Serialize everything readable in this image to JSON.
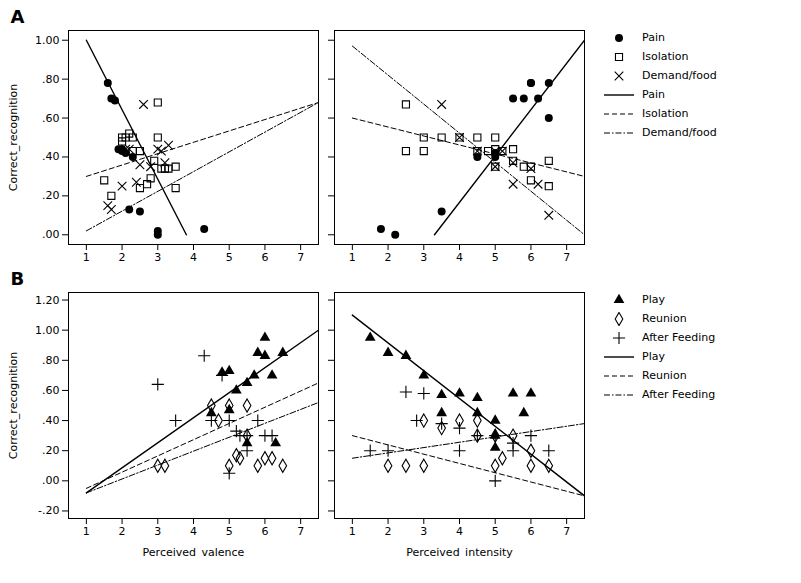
{
  "chart_data": [
    {
      "type": "scatter",
      "title": "A",
      "ylabel": "Correct_recognition",
      "xlim": [
        0.5,
        7.5
      ],
      "xticks": [
        1,
        2,
        3,
        4,
        5,
        6,
        7
      ],
      "ylim": [
        -0.05,
        1.05
      ],
      "yticks": [
        {
          "value": 0.0,
          "label": ".00"
        },
        {
          "value": 0.2,
          "label": ".20"
        },
        {
          "value": 0.4,
          "label": ".40"
        },
        {
          "value": 0.6,
          "label": ".60"
        },
        {
          "value": 0.8,
          "label": ".80"
        },
        {
          "value": 1.0,
          "label": "1.00"
        }
      ],
      "series": [
        {
          "name": "Pain",
          "type": "scatter",
          "marker": "circle",
          "color": "#000000",
          "x": [
            1.6,
            1.7,
            1.8,
            1.9,
            2.0,
            2.0,
            2.1,
            2.2,
            2.3,
            2.5,
            3.0,
            3.0,
            4.3
          ],
          "values": [
            0.78,
            0.7,
            0.69,
            0.44,
            0.44,
            0.43,
            0.42,
            0.13,
            0.4,
            0.12,
            0.0,
            0.02,
            0.03
          ]
        },
        {
          "name": "Isolation",
          "type": "scatter",
          "marker": "square",
          "color": "#000000",
          "x": [
            1.5,
            1.7,
            2.0,
            2.0,
            2.1,
            2.2,
            2.3,
            2.3,
            2.5,
            2.5,
            2.7,
            2.9,
            3.0,
            3.0,
            3.1,
            3.2,
            3.3,
            3.5,
            3.5,
            2.8
          ],
          "values": [
            0.28,
            0.2,
            0.5,
            0.48,
            0.5,
            0.52,
            0.5,
            0.43,
            0.43,
            0.24,
            0.26,
            0.38,
            0.68,
            0.5,
            0.34,
            0.34,
            0.34,
            0.35,
            0.24,
            0.29
          ]
        },
        {
          "name": "Demand/food",
          "type": "scatter",
          "marker": "x",
          "color": "#000000",
          "x": [
            1.6,
            1.7,
            2.0,
            2.1,
            2.2,
            2.4,
            2.5,
            2.6,
            2.8,
            3.0,
            3.1,
            3.2,
            3.3
          ],
          "values": [
            0.15,
            0.13,
            0.25,
            0.44,
            0.44,
            0.27,
            0.36,
            0.67,
            0.35,
            0.44,
            0.43,
            0.37,
            0.46
          ]
        },
        {
          "name": "Pain",
          "type": "line",
          "line_style": "solid",
          "color": "#000000",
          "x": [
            1.0,
            3.8
          ],
          "values": [
            1.0,
            0.0
          ]
        },
        {
          "name": "Isolation",
          "type": "line",
          "line_style": "dashed",
          "color": "#000000",
          "x": [
            1.0,
            7.5
          ],
          "values": [
            0.3,
            0.68
          ]
        },
        {
          "name": "Demand/food",
          "type": "line",
          "line_style": "dashdot",
          "color": "#000000",
          "x": [
            1.0,
            7.5
          ],
          "values": [
            0.02,
            0.68
          ]
        }
      ]
    },
    {
      "type": "scatter",
      "tick_labels": "x",
      "legend": "right",
      "xlim": [
        0.5,
        7.5
      ],
      "xticks": [
        1,
        2,
        3,
        4,
        5,
        6,
        7
      ],
      "ylim": [
        -0.05,
        1.05
      ],
      "yticks": [
        {
          "value": 0.0,
          "label": ".00"
        },
        {
          "value": 0.2,
          "label": ".20"
        },
        {
          "value": 0.4,
          "label": ".40"
        },
        {
          "value": 0.6,
          "label": ".60"
        },
        {
          "value": 0.8,
          "label": ".80"
        },
        {
          "value": 1.0,
          "label": "1.00"
        }
      ],
      "series": [
        {
          "name": "Pain",
          "type": "scatter",
          "marker": "circle",
          "color": "#000000",
          "x": [
            1.8,
            2.2,
            3.5,
            4.5,
            5.0,
            5.0,
            5.5,
            5.8,
            6.0,
            6.0,
            6.2,
            6.5,
            6.5
          ],
          "values": [
            0.03,
            0.0,
            0.12,
            0.4,
            0.4,
            0.42,
            0.7,
            0.7,
            0.78,
            0.78,
            0.7,
            0.6,
            0.78
          ]
        },
        {
          "name": "Isolation",
          "type": "scatter",
          "marker": "square",
          "color": "#000000",
          "x": [
            2.5,
            3.0,
            3.5,
            4.0,
            4.5,
            4.5,
            4.8,
            5.0,
            5.0,
            5.0,
            5.2,
            5.5,
            5.5,
            5.8,
            6.0,
            6.0,
            6.5,
            6.5,
            2.5,
            3.0
          ],
          "values": [
            0.43,
            0.43,
            0.5,
            0.5,
            0.5,
            0.43,
            0.43,
            0.5,
            0.44,
            0.35,
            0.43,
            0.44,
            0.38,
            0.35,
            0.35,
            0.28,
            0.38,
            0.25,
            0.67,
            0.5
          ]
        },
        {
          "name": "Demand/food",
          "type": "scatter",
          "marker": "x",
          "color": "#000000",
          "x": [
            3.5,
            4.0,
            4.5,
            5.0,
            5.0,
            5.2,
            5.5,
            5.5,
            6.0,
            6.2,
            6.5
          ],
          "values": [
            0.67,
            0.5,
            0.43,
            0.43,
            0.35,
            0.43,
            0.37,
            0.26,
            0.34,
            0.26,
            0.1
          ]
        },
        {
          "name": "Pain",
          "type": "line",
          "line_style": "solid",
          "color": "#000000",
          "x": [
            3.3,
            7.5
          ],
          "values": [
            0.0,
            1.0
          ]
        },
        {
          "name": "Isolation",
          "type": "line",
          "line_style": "dashed",
          "color": "#000000",
          "x": [
            1.0,
            7.5
          ],
          "values": [
            0.6,
            0.3
          ]
        },
        {
          "name": "Demand/food",
          "type": "line",
          "line_style": "dashdot",
          "color": "#000000",
          "x": [
            1.0,
            7.5
          ],
          "values": [
            0.97,
            0.0
          ]
        }
      ]
    },
    {
      "type": "scatter",
      "title": "B",
      "ylabel": "Correct_recognition",
      "xlabel": "Perceived_valence",
      "xlim": [
        0.5,
        7.5
      ],
      "xticks": [
        1,
        2,
        3,
        4,
        5,
        6,
        7
      ],
      "ylim": [
        -0.25,
        1.25
      ],
      "yticks": [
        {
          "value": -0.2,
          "label": "-.20"
        },
        {
          "value": 0.0,
          "label": ".00"
        },
        {
          "value": 0.2,
          "label": ".20"
        },
        {
          "value": 0.4,
          "label": ".40"
        },
        {
          "value": 0.6,
          "label": ".60"
        },
        {
          "value": 0.8,
          "label": ".80"
        },
        {
          "value": 1.0,
          "label": "1.00"
        },
        {
          "value": 1.2,
          "label": "1.20"
        }
      ],
      "series": [
        {
          "name": "Play",
          "type": "scatter",
          "marker": "triangle",
          "color": "#000000",
          "x": [
            4.5,
            4.8,
            5.0,
            5.0,
            5.2,
            5.5,
            5.5,
            5.7,
            5.8,
            6.0,
            6.0,
            6.2,
            6.3,
            6.5
          ],
          "values": [
            0.45,
            0.72,
            0.73,
            0.47,
            0.6,
            0.65,
            0.25,
            0.7,
            0.85,
            0.95,
            0.83,
            0.7,
            0.25,
            0.85
          ]
        },
        {
          "name": "Reunion",
          "type": "scatter",
          "marker": "diamond",
          "color": "#000000",
          "x": [
            3.0,
            3.2,
            4.5,
            4.7,
            5.0,
            5.0,
            5.2,
            5.3,
            5.5,
            5.5,
            5.8,
            6.0,
            6.2,
            6.5
          ],
          "values": [
            0.1,
            0.1,
            0.5,
            0.4,
            0.5,
            0.1,
            0.17,
            0.15,
            0.5,
            0.3,
            0.1,
            0.15,
            0.15,
            0.1
          ]
        },
        {
          "name": "After Feeding",
          "type": "scatter",
          "marker": "plus",
          "color": "#000000",
          "x": [
            3.0,
            3.5,
            4.3,
            4.5,
            4.8,
            5.0,
            5.0,
            5.2,
            5.3,
            5.5,
            5.5,
            5.8,
            6.0,
            6.2
          ],
          "values": [
            0.64,
            0.4,
            0.83,
            0.4,
            0.7,
            0.4,
            0.05,
            0.33,
            0.3,
            0.3,
            0.2,
            0.4,
            0.3,
            0.3
          ]
        },
        {
          "name": "Play",
          "type": "line",
          "line_style": "solid",
          "color": "#000000",
          "x": [
            1.0,
            7.5
          ],
          "values": [
            -0.08,
            1.0
          ]
        },
        {
          "name": "Reunion",
          "type": "line",
          "line_style": "dashed",
          "color": "#000000",
          "x": [
            1.0,
            7.5
          ],
          "values": [
            -0.05,
            0.65
          ]
        },
        {
          "name": "After Feeding",
          "type": "line",
          "line_style": "dashdot",
          "color": "#000000",
          "x": [
            1.0,
            7.5
          ],
          "values": [
            -0.08,
            0.52
          ]
        }
      ]
    },
    {
      "type": "scatter",
      "xlabel": "Perceived_intensity",
      "tick_labels": "x",
      "legend": "right",
      "xlim": [
        0.5,
        7.5
      ],
      "xticks": [
        1,
        2,
        3,
        4,
        5,
        6,
        7
      ],
      "ylim": [
        -0.25,
        1.25
      ],
      "yticks": [
        {
          "value": -0.2,
          "label": "-.20"
        },
        {
          "value": 0.0,
          "label": ".00"
        },
        {
          "value": 0.2,
          "label": ".20"
        },
        {
          "value": 0.4,
          "label": ".40"
        },
        {
          "value": 0.6,
          "label": ".60"
        },
        {
          "value": 0.8,
          "label": ".80"
        },
        {
          "value": 1.0,
          "label": "1.00"
        },
        {
          "value": 1.2,
          "label": "1.20"
        }
      ],
      "series": [
        {
          "name": "Play",
          "type": "scatter",
          "marker": "triangle",
          "color": "#000000",
          "x": [
            1.5,
            2.0,
            2.5,
            3.0,
            3.5,
            3.5,
            4.0,
            4.5,
            4.5,
            5.0,
            5.0,
            5.0,
            5.5,
            5.8,
            6.0
          ],
          "values": [
            0.95,
            0.85,
            0.83,
            0.7,
            0.57,
            0.45,
            0.58,
            0.55,
            0.45,
            0.4,
            0.3,
            0.22,
            0.58,
            0.45,
            0.58
          ]
        },
        {
          "name": "Reunion",
          "type": "scatter",
          "marker": "diamond",
          "color": "#000000",
          "x": [
            2.0,
            2.5,
            3.0,
            3.0,
            3.5,
            4.0,
            4.5,
            4.5,
            5.0,
            5.0,
            5.2,
            5.5,
            6.0,
            6.0,
            6.5
          ],
          "values": [
            0.1,
            0.1,
            0.4,
            0.1,
            0.35,
            0.4,
            0.4,
            0.3,
            0.3,
            0.1,
            0.15,
            0.3,
            0.2,
            0.1,
            0.1
          ]
        },
        {
          "name": "After Feeding",
          "type": "scatter",
          "marker": "plus",
          "color": "#000000",
          "x": [
            1.5,
            2.0,
            2.5,
            2.8,
            3.0,
            3.5,
            4.0,
            4.0,
            4.5,
            5.0,
            5.0,
            5.5,
            5.5,
            6.0,
            6.5
          ],
          "values": [
            0.2,
            0.2,
            0.59,
            0.4,
            0.58,
            0.38,
            0.35,
            0.2,
            0.3,
            0.3,
            0.0,
            0.25,
            0.2,
            0.3,
            0.2
          ]
        },
        {
          "name": "Play",
          "type": "line",
          "line_style": "solid",
          "color": "#000000",
          "x": [
            1.0,
            7.5
          ],
          "values": [
            1.1,
            -0.1
          ]
        },
        {
          "name": "Reunion",
          "type": "line",
          "line_style": "dashed",
          "color": "#000000",
          "x": [
            1.0,
            7.5
          ],
          "values": [
            0.3,
            -0.1
          ]
        },
        {
          "name": "After Feeding",
          "type": "line",
          "line_style": "dashdot",
          "color": "#000000",
          "x": [
            1.0,
            7.5
          ],
          "values": [
            0.15,
            0.38
          ]
        }
      ]
    }
  ]
}
